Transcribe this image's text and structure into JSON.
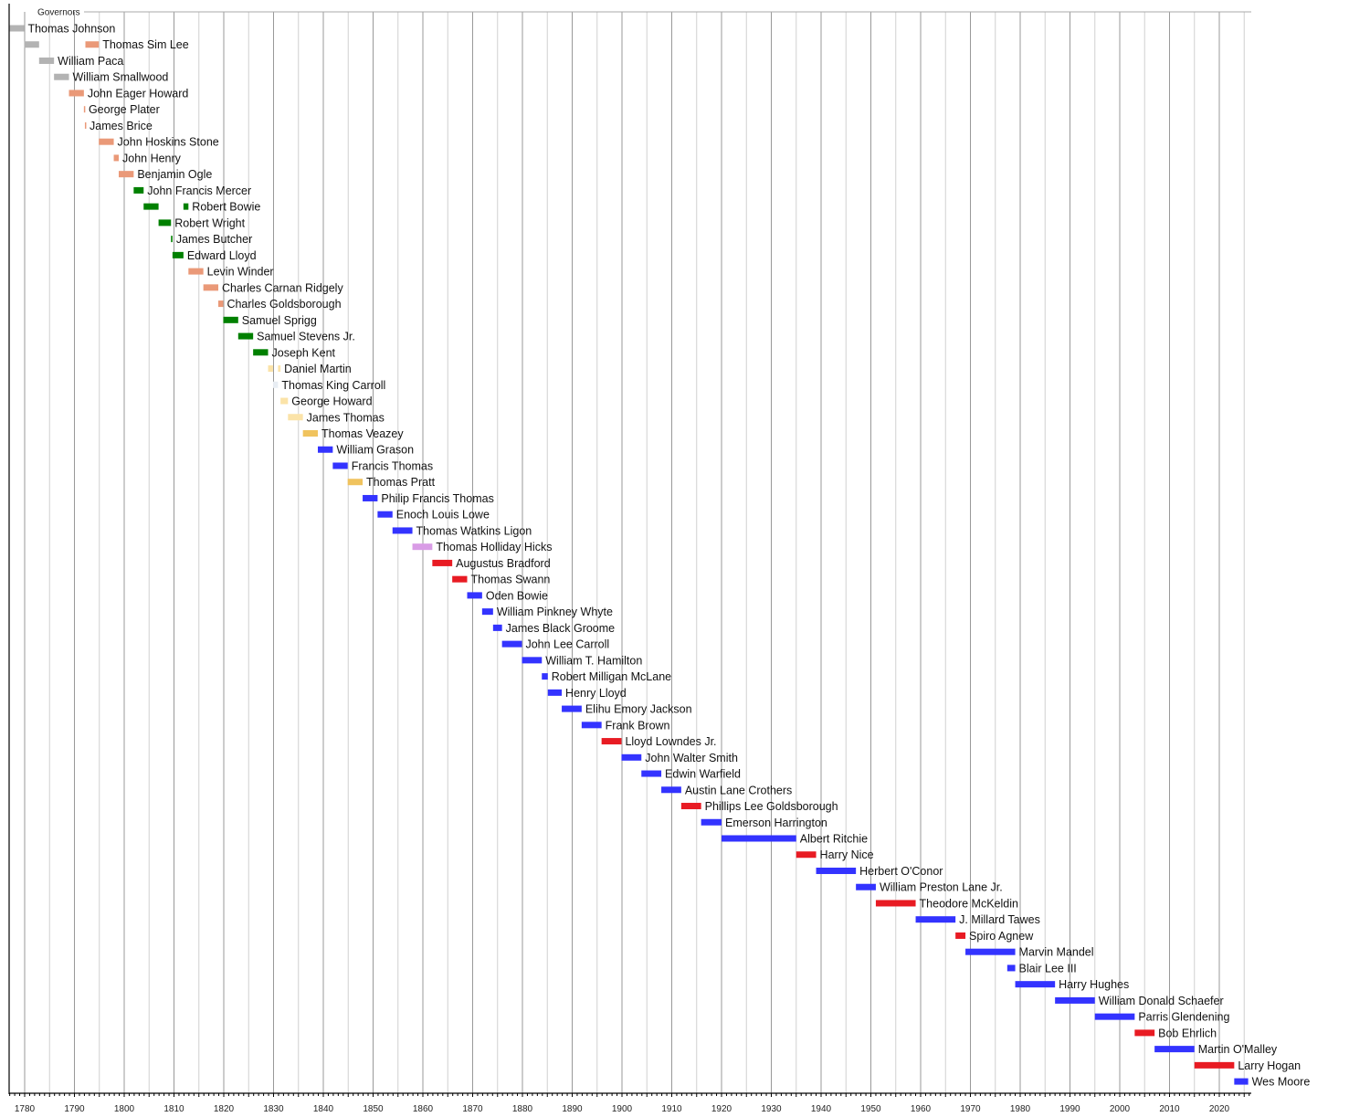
{
  "chart_data": {
    "type": "timeline",
    "title": "Governors",
    "xlim": [
      1777,
      2026
    ],
    "x_ticks": [
      1780,
      1790,
      1800,
      1810,
      1820,
      1830,
      1840,
      1850,
      1860,
      1870,
      1880,
      1890,
      1900,
      1910,
      1920,
      1930,
      1940,
      1950,
      1960,
      1970,
      1980,
      1990,
      2000,
      2010,
      2020
    ],
    "grid": true,
    "party_colors": {
      "none": "#b3b3b3",
      "federalist": "#ea9978",
      "democratic_republican": "#008000",
      "national_republican": "#fbe3a8",
      "jacksonian": "#e8edf3",
      "whig": "#f0c35e",
      "democratic": "#3333ff",
      "american": "#d99ce6",
      "republican": "#e81b23"
    },
    "series": [
      {
        "name": "Thomas Johnson",
        "terms": [
          [
            1777,
            1779.9,
            "none"
          ]
        ]
      },
      {
        "name": "Thomas Sim Lee",
        "terms": [
          [
            1779.9,
            1782.9,
            "none"
          ],
          [
            1792.2,
            1794.9,
            "federalist"
          ]
        ]
      },
      {
        "name": "William Paca",
        "terms": [
          [
            1782.9,
            1785.9,
            "none"
          ]
        ]
      },
      {
        "name": "William Smallwood",
        "terms": [
          [
            1785.9,
            1788.9,
            "none"
          ]
        ]
      },
      {
        "name": "John Eager Howard",
        "terms": [
          [
            1788.9,
            1791.9,
            "federalist"
          ]
        ]
      },
      {
        "name": "George Plater",
        "terms": [
          [
            1791.9,
            1792.1,
            "federalist"
          ]
        ]
      },
      {
        "name": "James Brice",
        "terms": [
          [
            1792.1,
            1792.3,
            "federalist"
          ]
        ]
      },
      {
        "name": "John Hoskins Stone",
        "terms": [
          [
            1794.9,
            1797.9,
            "federalist"
          ]
        ]
      },
      {
        "name": "John Henry",
        "terms": [
          [
            1797.9,
            1798.9,
            "federalist"
          ]
        ]
      },
      {
        "name": "Benjamin Ogle",
        "terms": [
          [
            1798.9,
            1801.9,
            "federalist"
          ]
        ]
      },
      {
        "name": "John Francis Mercer",
        "terms": [
          [
            1801.9,
            1803.9,
            "democratic_republican"
          ]
        ]
      },
      {
        "name": "Robert Bowie",
        "terms": [
          [
            1803.9,
            1806.9,
            "democratic_republican"
          ],
          [
            1811.9,
            1812.9,
            "democratic_republican"
          ]
        ]
      },
      {
        "name": "Robert Wright",
        "terms": [
          [
            1806.9,
            1809.4,
            "democratic_republican"
          ]
        ]
      },
      {
        "name": "James Butcher",
        "terms": [
          [
            1809.4,
            1809.7,
            "democratic_republican"
          ]
        ]
      },
      {
        "name": "Edward Lloyd",
        "terms": [
          [
            1809.7,
            1811.9,
            "democratic_republican"
          ]
        ]
      },
      {
        "name": "Levin Winder",
        "terms": [
          [
            1812.9,
            1815.9,
            "federalist"
          ]
        ]
      },
      {
        "name": "Charles Carnan Ridgely",
        "terms": [
          [
            1815.9,
            1818.9,
            "federalist"
          ]
        ]
      },
      {
        "name": "Charles Goldsborough",
        "terms": [
          [
            1818.9,
            1819.9,
            "federalist"
          ]
        ]
      },
      {
        "name": "Samuel Sprigg",
        "terms": [
          [
            1819.9,
            1822.9,
            "democratic_republican"
          ]
        ]
      },
      {
        "name": "Samuel Stevens Jr.",
        "terms": [
          [
            1822.9,
            1825.9,
            "democratic_republican"
          ]
        ]
      },
      {
        "name": "Joseph Kent",
        "terms": [
          [
            1825.9,
            1828.9,
            "democratic_republican"
          ]
        ]
      },
      {
        "name": "Daniel Martin",
        "terms": [
          [
            1828.9,
            1829.9,
            "national_republican"
          ],
          [
            1830.9,
            1831.4,
            "national_republican"
          ]
        ]
      },
      {
        "name": "Thomas King Carroll",
        "terms": [
          [
            1829.9,
            1830.9,
            "jacksonian"
          ]
        ]
      },
      {
        "name": "George Howard",
        "terms": [
          [
            1831.4,
            1832.9,
            "national_republican"
          ]
        ]
      },
      {
        "name": "James Thomas",
        "terms": [
          [
            1832.9,
            1835.9,
            "national_republican"
          ]
        ]
      },
      {
        "name": "Thomas Veazey",
        "terms": [
          [
            1835.9,
            1838.9,
            "whig"
          ]
        ]
      },
      {
        "name": "William Grason",
        "terms": [
          [
            1838.9,
            1841.9,
            "democratic"
          ]
        ]
      },
      {
        "name": "Francis Thomas",
        "terms": [
          [
            1841.9,
            1844.9,
            "democratic"
          ]
        ]
      },
      {
        "name": "Thomas Pratt",
        "terms": [
          [
            1844.9,
            1847.9,
            "whig"
          ]
        ]
      },
      {
        "name": "Philip Francis Thomas",
        "terms": [
          [
            1847.9,
            1850.9,
            "democratic"
          ]
        ]
      },
      {
        "name": "Enoch Louis Lowe",
        "terms": [
          [
            1850.9,
            1853.9,
            "democratic"
          ]
        ]
      },
      {
        "name": "Thomas Watkins Ligon",
        "terms": [
          [
            1853.9,
            1857.9,
            "democratic"
          ]
        ]
      },
      {
        "name": "Thomas Holliday Hicks",
        "terms": [
          [
            1857.9,
            1861.9,
            "american"
          ]
        ]
      },
      {
        "name": "Augustus Bradford",
        "terms": [
          [
            1861.9,
            1865.9,
            "republican"
          ]
        ]
      },
      {
        "name": "Thomas Swann",
        "terms": [
          [
            1865.9,
            1868.9,
            "republican"
          ]
        ]
      },
      {
        "name": "Oden Bowie",
        "terms": [
          [
            1868.9,
            1871.9,
            "democratic"
          ]
        ]
      },
      {
        "name": "William Pinkney Whyte",
        "terms": [
          [
            1871.9,
            1874.1,
            "democratic"
          ]
        ]
      },
      {
        "name": "James Black Groome",
        "terms": [
          [
            1874.1,
            1875.9,
            "democratic"
          ]
        ]
      },
      {
        "name": "John Lee Carroll",
        "terms": [
          [
            1875.9,
            1879.9,
            "democratic"
          ]
        ]
      },
      {
        "name": "William T. Hamilton",
        "terms": [
          [
            1879.9,
            1883.9,
            "democratic"
          ]
        ]
      },
      {
        "name": "Robert Milligan McLane",
        "terms": [
          [
            1883.9,
            1885.1,
            "democratic"
          ]
        ]
      },
      {
        "name": "Henry Lloyd",
        "terms": [
          [
            1885.1,
            1887.9,
            "democratic"
          ]
        ]
      },
      {
        "name": "Elihu Emory Jackson",
        "terms": [
          [
            1887.9,
            1891.9,
            "democratic"
          ]
        ]
      },
      {
        "name": "Frank Brown",
        "terms": [
          [
            1891.9,
            1895.9,
            "democratic"
          ]
        ]
      },
      {
        "name": "Lloyd Lowndes Jr.",
        "terms": [
          [
            1895.9,
            1899.9,
            "republican"
          ]
        ]
      },
      {
        "name": "John Walter Smith",
        "terms": [
          [
            1899.9,
            1903.9,
            "democratic"
          ]
        ]
      },
      {
        "name": "Edwin Warfield",
        "terms": [
          [
            1903.9,
            1907.9,
            "democratic"
          ]
        ]
      },
      {
        "name": "Austin Lane Crothers",
        "terms": [
          [
            1907.9,
            1911.9,
            "democratic"
          ]
        ]
      },
      {
        "name": "Phillips Lee Goldsborough",
        "terms": [
          [
            1911.9,
            1915.9,
            "republican"
          ]
        ]
      },
      {
        "name": "Emerson Harrington",
        "terms": [
          [
            1915.9,
            1920.0,
            "democratic"
          ]
        ]
      },
      {
        "name": "Albert Ritchie",
        "terms": [
          [
            1920.0,
            1935.0,
            "democratic"
          ]
        ]
      },
      {
        "name": "Harry Nice",
        "terms": [
          [
            1935.0,
            1939.0,
            "republican"
          ]
        ]
      },
      {
        "name": "Herbert O'Conor",
        "terms": [
          [
            1939.0,
            1947.0,
            "democratic"
          ]
        ]
      },
      {
        "name": "William Preston Lane Jr.",
        "terms": [
          [
            1947.0,
            1951.0,
            "democratic"
          ]
        ]
      },
      {
        "name": "Theodore McKeldin",
        "terms": [
          [
            1951.0,
            1959.0,
            "republican"
          ]
        ]
      },
      {
        "name": "J. Millard Tawes",
        "terms": [
          [
            1959.0,
            1967.0,
            "democratic"
          ]
        ]
      },
      {
        "name": "Spiro Agnew",
        "terms": [
          [
            1967.0,
            1969.0,
            "republican"
          ]
        ]
      },
      {
        "name": "Marvin Mandel",
        "terms": [
          [
            1969.0,
            1979.0,
            "democratic"
          ]
        ]
      },
      {
        "name": "Blair Lee III",
        "terms": [
          [
            1977.4,
            1979.0,
            "democratic"
          ]
        ]
      },
      {
        "name": "Harry Hughes",
        "terms": [
          [
            1979.0,
            1987.0,
            "democratic"
          ]
        ]
      },
      {
        "name": "William Donald Schaefer",
        "terms": [
          [
            1987.0,
            1995.0,
            "democratic"
          ]
        ]
      },
      {
        "name": "Parris Glendening",
        "terms": [
          [
            1995.0,
            2003.0,
            "democratic"
          ]
        ]
      },
      {
        "name": "Bob Ehrlich",
        "terms": [
          [
            2003.0,
            2007.0,
            "republican"
          ]
        ]
      },
      {
        "name": "Martin O'Malley",
        "terms": [
          [
            2007.0,
            2015.0,
            "democratic"
          ]
        ]
      },
      {
        "name": "Larry Hogan",
        "terms": [
          [
            2015.0,
            2023.0,
            "republican"
          ]
        ]
      },
      {
        "name": "Wes Moore",
        "terms": [
          [
            2023.0,
            2025.8,
            "democratic"
          ]
        ]
      }
    ]
  }
}
